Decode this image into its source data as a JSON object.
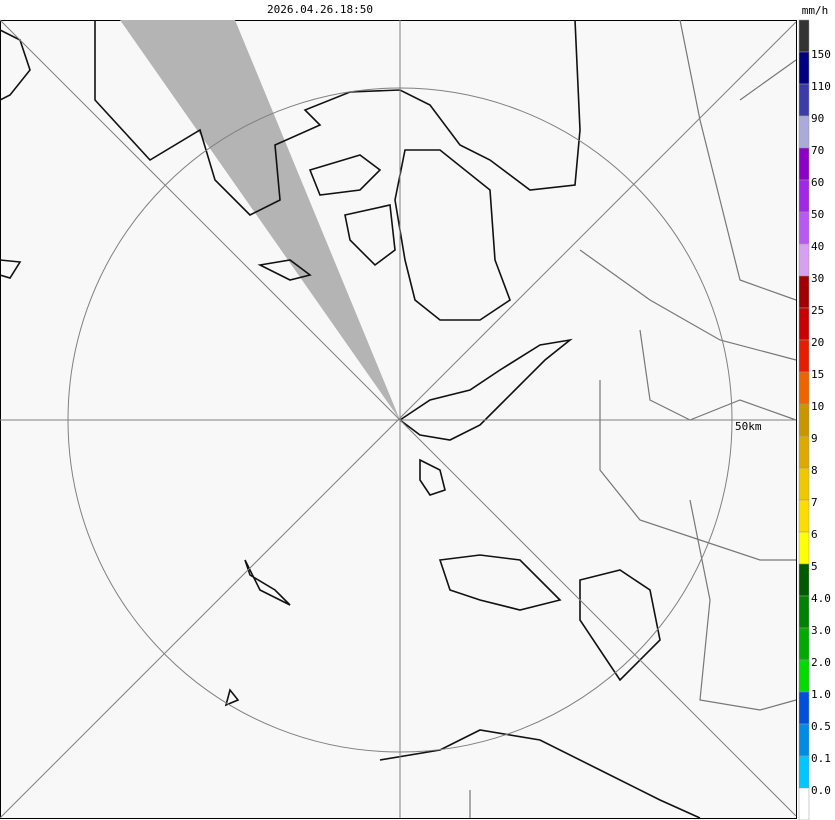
{
  "header": {
    "timestamp": "2026.04.26.18:50",
    "unit": "mm/h"
  },
  "map": {
    "range_label": "50km"
  },
  "legend": {
    "labels": [
      "150",
      "110",
      "90",
      "70",
      "60",
      "50",
      "40",
      "30",
      "25",
      "20",
      "15",
      "10",
      "9",
      "8",
      "7",
      "6",
      "5",
      "4.0",
      "3.0",
      "2.0",
      "1.0",
      "0.5",
      "0.1",
      "0.0"
    ],
    "colors": [
      "#333333",
      "#000080",
      "#3c3ca8",
      "#aaaadc",
      "#8c00c8",
      "#a028e6",
      "#b85af0",
      "#d8a0f0",
      "#a00000",
      "#c80000",
      "#e61e00",
      "#f06400",
      "#c89600",
      "#dcaa00",
      "#f0c800",
      "#ffdc00",
      "#ffff00",
      "#005a00",
      "#008200",
      "#00aa00",
      "#00dc00",
      "#0050dc",
      "#008ce6",
      "#00c8ff",
      "#ffffff"
    ]
  }
}
